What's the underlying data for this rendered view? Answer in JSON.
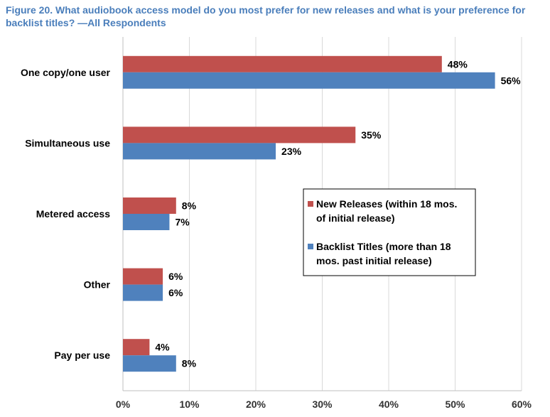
{
  "chart_data": {
    "type": "bar",
    "orientation": "horizontal",
    "title": "Figure 20. What audiobook access model do you most prefer for new releases and what is your preference for backlist titles?  —All Respondents",
    "categories": [
      "One copy/one user",
      "Simultaneous use",
      "Metered access",
      "Other",
      "Pay per use"
    ],
    "series": [
      {
        "name": "New Releases (within 18 mos. of initial release)",
        "legend_lines": [
          "New Releases (within 18 mos.",
          "of initial release)"
        ],
        "values": [
          48,
          35,
          8,
          6,
          4
        ],
        "labels": [
          "48%",
          "35%",
          "8%",
          "6%",
          "4%"
        ],
        "color": "#c0504d"
      },
      {
        "name": "Backlist Titles (more than 18 mos. past initial release)",
        "legend_lines": [
          "Backlist Titles (more than 18",
          "mos. past initial release)"
        ],
        "values": [
          56,
          23,
          7,
          6,
          8
        ],
        "labels": [
          "56%",
          "23%",
          "7%",
          "6%",
          "8%"
        ],
        "color": "#4f81bd"
      }
    ],
    "xlim": [
      0,
      60
    ],
    "xticks": [
      0,
      10,
      20,
      30,
      40,
      50,
      60
    ],
    "xtick_labels": [
      "0%",
      "10%",
      "20%",
      "30%",
      "40%",
      "50%",
      "60%"
    ],
    "xlabel": "",
    "ylabel": "",
    "grid": true,
    "legend_position": "right-middle",
    "title_color": "#4a7ebb"
  }
}
